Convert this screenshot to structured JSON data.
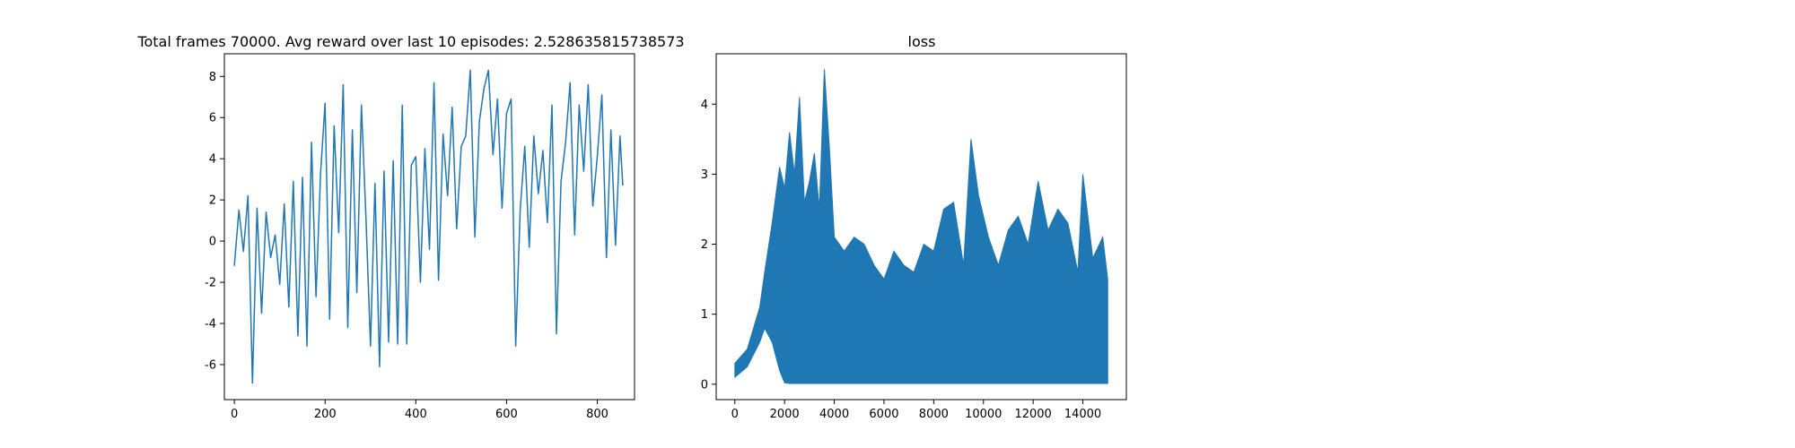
{
  "chart_data": [
    {
      "type": "line",
      "title": "Total frames 70000. Avg reward over last 10 episodes: 2.528635815738573",
      "xlabel": "",
      "ylabel": "",
      "xlim": [
        -22,
        882
      ],
      "ylim": [
        -7.7,
        9.1
      ],
      "xticks": [
        0,
        200,
        400,
        600,
        800
      ],
      "yticks": [
        -6,
        -4,
        -2,
        0,
        2,
        4,
        6,
        8
      ],
      "line_color": "#1f77b4",
      "grid": false,
      "legend": "none",
      "series": [
        {
          "x": [
            0,
            10,
            20,
            30,
            40,
            50,
            60,
            70,
            80,
            90,
            100,
            110,
            120,
            130,
            140,
            150,
            160,
            170,
            180,
            190,
            200,
            210,
            220,
            230,
            240,
            250,
            260,
            270,
            280,
            290,
            300,
            310,
            320,
            330,
            340,
            350,
            360,
            370,
            380,
            390,
            400,
            410,
            420,
            430,
            440,
            450,
            460,
            470,
            480,
            490,
            500,
            510,
            520,
            530,
            540,
            550,
            560,
            570,
            580,
            590,
            600,
            610,
            620,
            630,
            640,
            650,
            660,
            670,
            680,
            690,
            700,
            710,
            720,
            730,
            740,
            750,
            760,
            770,
            780,
            790,
            800,
            810,
            820,
            830,
            840,
            850,
            856
          ],
          "values": [
            -1.2,
            1.5,
            -0.5,
            2.2,
            -6.9,
            1.6,
            -3.5,
            1.4,
            -0.8,
            0.3,
            -2.1,
            1.8,
            -3.2,
            2.9,
            -4.6,
            3.1,
            -5.1,
            4.8,
            -2.7,
            3.3,
            6.7,
            -3.8,
            5.6,
            0.4,
            7.6,
            -4.2,
            5.4,
            -2.5,
            6.6,
            1.2,
            -5.1,
            2.8,
            -6.1,
            3.4,
            -4.9,
            3.9,
            -5.0,
            6.6,
            -5.0,
            3.7,
            4.1,
            -2.0,
            4.5,
            -0.4,
            7.7,
            -1.9,
            5.2,
            2.2,
            6.5,
            0.6,
            4.6,
            5.1,
            8.3,
            0.2,
            5.8,
            7.4,
            8.3,
            4.2,
            6.9,
            1.6,
            6.2,
            6.9,
            -5.1,
            1.5,
            4.6,
            -0.3,
            5.1,
            2.3,
            4.4,
            0.9,
            6.6,
            -4.5,
            2.9,
            4.8,
            7.7,
            0.3,
            6.6,
            3.4,
            7.6,
            1.7,
            4.1,
            7.1,
            -0.8,
            5.4,
            -0.2,
            5.1,
            2.7
          ]
        }
      ]
    },
    {
      "type": "area",
      "title": "loss",
      "xlabel": "",
      "ylabel": "",
      "xlim": [
        -750,
        15750
      ],
      "ylim": [
        -0.22,
        4.72
      ],
      "xticks": [
        0,
        2000,
        4000,
        6000,
        8000,
        10000,
        12000,
        14000
      ],
      "yticks": [
        0,
        1,
        2,
        3,
        4
      ],
      "line_color": "#1f77b4",
      "grid": false,
      "legend": "none",
      "series": [
        {
          "x": [
            0,
            500,
            1000,
            1200,
            1500,
            1800,
            2000,
            2200,
            2400,
            2600,
            2800,
            3000,
            3200,
            3400,
            3600,
            3800,
            4000,
            4400,
            4800,
            5200,
            5600,
            6000,
            6400,
            6800,
            7200,
            7600,
            8000,
            8400,
            8800,
            9200,
            9500,
            9800,
            10200,
            10600,
            11000,
            11400,
            11800,
            12200,
            12600,
            13000,
            13400,
            13800,
            14000,
            14400,
            14800,
            15000
          ],
          "upper": [
            0.3,
            0.5,
            1.1,
            1.6,
            2.3,
            3.1,
            2.8,
            3.6,
            3.0,
            4.1,
            2.6,
            2.9,
            3.3,
            2.5,
            4.5,
            3.4,
            2.1,
            1.9,
            2.1,
            2.0,
            1.7,
            1.5,
            1.9,
            1.7,
            1.6,
            2.0,
            1.9,
            2.5,
            2.6,
            1.7,
            3.5,
            2.7,
            2.1,
            1.7,
            2.2,
            2.4,
            2.0,
            2.9,
            2.2,
            2.5,
            2.3,
            1.6,
            3.0,
            1.8,
            2.1,
            1.5
          ],
          "lower": [
            0.1,
            0.25,
            0.6,
            0.8,
            0.6,
            0.2,
            0.02,
            0.01,
            0.01,
            0.01,
            0.01,
            0.01,
            0.01,
            0.01,
            0.01,
            0.01,
            0.01,
            0.01,
            0.01,
            0.01,
            0.01,
            0.01,
            0.01,
            0.01,
            0.01,
            0.01,
            0.01,
            0.01,
            0.01,
            0.01,
            0.01,
            0.01,
            0.01,
            0.01,
            0.01,
            0.01,
            0.01,
            0.01,
            0.01,
            0.01,
            0.01,
            0.01,
            0.01,
            0.01,
            0.01,
            0.01
          ]
        }
      ]
    }
  ]
}
